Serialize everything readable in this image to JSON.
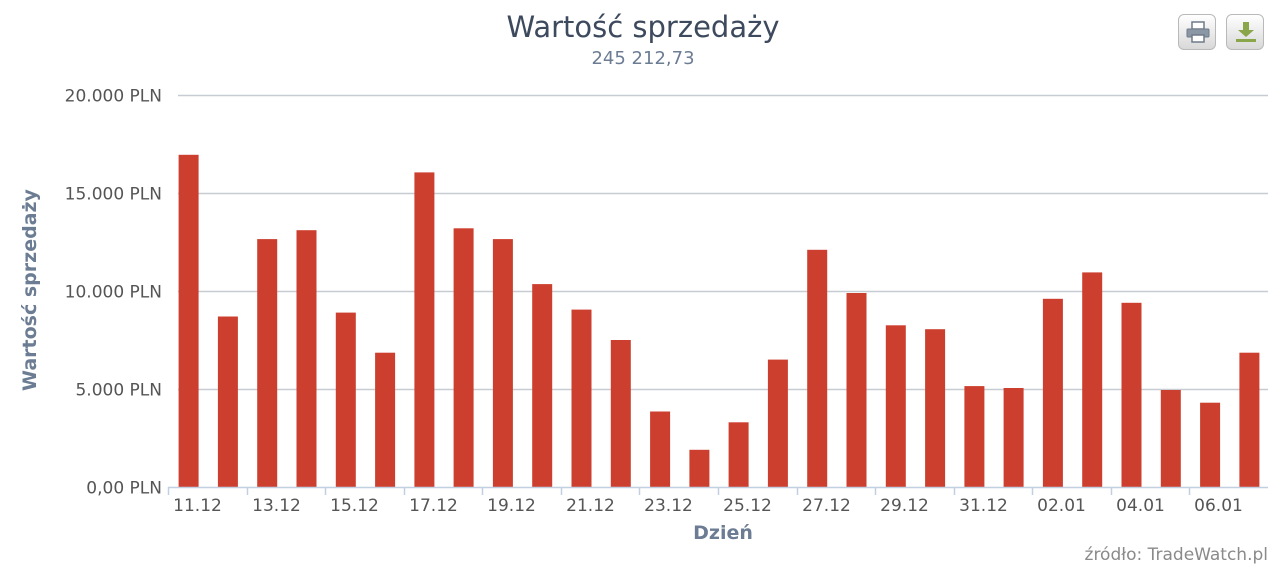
{
  "title": "Wartość sprzedaży",
  "subtitle": "245 212,73",
  "credit": "źródło: TradeWatch.pl",
  "buttons": {
    "print_icon": "printer-icon",
    "download_icon": "download-icon"
  },
  "colors": {
    "bar": "#cc3f2f",
    "grid": "#c7ccd3",
    "axis": "#c0d0e0"
  },
  "chart_data": {
    "type": "bar",
    "title": "Wartość sprzedaży",
    "subtitle": "245 212,73",
    "xlabel": "Dzień",
    "ylabel": "Wartość sprzedaży",
    "ylim": [
      0,
      20000
    ],
    "yticks": [
      0,
      5000,
      10000,
      15000,
      20000
    ],
    "ytick_labels": [
      "0,00 PLN",
      "5.000 PLN",
      "10.000 PLN",
      "15.000 PLN",
      "20.000 PLN"
    ],
    "grid": true,
    "legend": "none",
    "categories": [
      "11.12",
      "12.12",
      "13.12",
      "14.12",
      "15.12",
      "16.12",
      "17.12",
      "18.12",
      "19.12",
      "20.12",
      "21.12",
      "22.12",
      "23.12",
      "24.12",
      "25.12",
      "26.12",
      "27.12",
      "28.12",
      "29.12",
      "30.12",
      "31.12",
      "01.01",
      "02.01",
      "03.01",
      "04.01",
      "05.01",
      "06.01",
      "07.01"
    ],
    "xtick_labels": [
      "11.12",
      "",
      "13.12",
      "",
      "15.12",
      "",
      "17.12",
      "",
      "19.12",
      "",
      "21.12",
      "",
      "23.12",
      "",
      "25.12",
      "",
      "27.12",
      "",
      "29.12",
      "",
      "31.12",
      "",
      "02.01",
      "",
      "04.01",
      "",
      "06.01",
      ""
    ],
    "values": [
      16950,
      8700,
      12650,
      13100,
      8900,
      6850,
      16050,
      13200,
      12650,
      10350,
      9050,
      7500,
      3850,
      1900,
      3300,
      6500,
      12100,
      9900,
      8250,
      8050,
      5150,
      5050,
      9600,
      10950,
      9400,
      4950,
      4300,
      6850
    ]
  }
}
